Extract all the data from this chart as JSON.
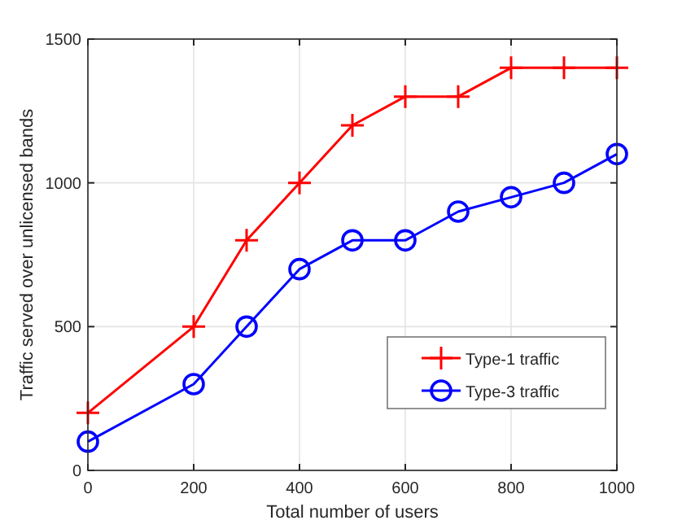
{
  "chart_data": {
    "type": "line",
    "xlabel": "Total number of users",
    "ylabel": "Traffic served over unlicensed bands",
    "x": [
      0,
      200,
      300,
      400,
      500,
      600,
      700,
      800,
      900,
      1000
    ],
    "series": [
      {
        "name": "Type-1 traffic",
        "color": "#ff0000",
        "marker": "cross",
        "values": [
          200,
          500,
          800,
          1000,
          1200,
          1300,
          1300,
          1400,
          1400,
          1400
        ]
      },
      {
        "name": "Type-3 traffic",
        "color": "#0000ff",
        "marker": "circle",
        "values": [
          100,
          300,
          500,
          700,
          800,
          800,
          900,
          950,
          1000,
          1100
        ]
      }
    ],
    "xlim": [
      0,
      1000
    ],
    "xticks": [
      0,
      200,
      400,
      600,
      800,
      1000
    ],
    "ylim": [
      0,
      1500
    ],
    "yticks": [
      0,
      500,
      1000,
      1500
    ],
    "grid": true,
    "legend": "bottom right",
    "line_style": "solid"
  }
}
